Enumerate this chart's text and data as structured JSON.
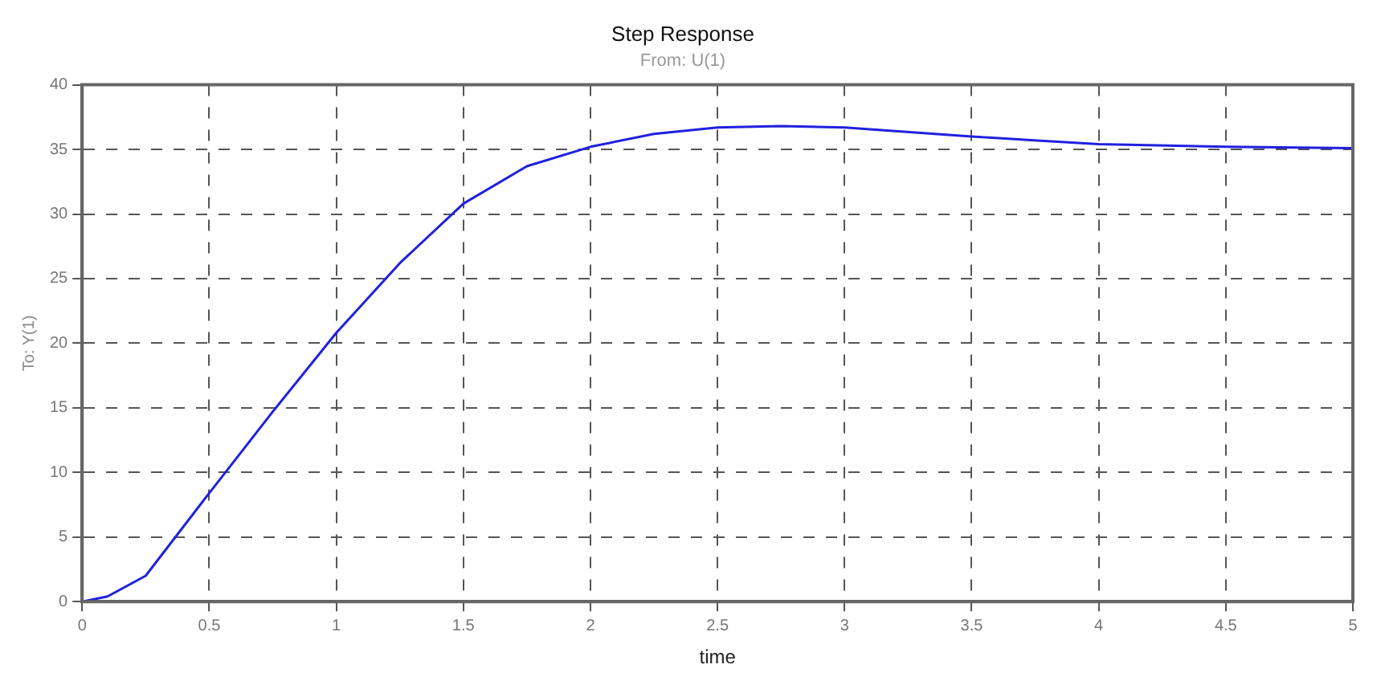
{
  "chart_data": {
    "type": "line",
    "title": "Step Response",
    "subtitle": "From: U(1)",
    "xlabel": "time",
    "ylabel": "To: Y(1)",
    "x": [
      0,
      0.1,
      0.25,
      0.5,
      0.75,
      1,
      1.25,
      1.5,
      1.75,
      2,
      2.25,
      2.5,
      2.75,
      3,
      3.5,
      4,
      4.5,
      5
    ],
    "series": [
      {
        "color": "#2020e0",
        "values": [
          0,
          0.4,
          2,
          8.4,
          14.7,
          20.8,
          26.2,
          30.8,
          33.7,
          35.2,
          36.2,
          36.7,
          36.8,
          36.7,
          36,
          35.4,
          35.2,
          35.1
        ]
      }
    ],
    "xlim": [
      0,
      5
    ],
    "xticks": [
      0,
      0.5,
      1,
      1.5,
      2,
      2.5,
      3,
      3.5,
      4,
      4.5,
      5
    ],
    "ylim": [
      0,
      40
    ],
    "yticks": [
      0,
      5,
      10,
      15,
      20,
      25,
      30,
      35,
      40
    ],
    "grid": true,
    "line_style": "solid",
    "marker": "none",
    "legend": false
  }
}
